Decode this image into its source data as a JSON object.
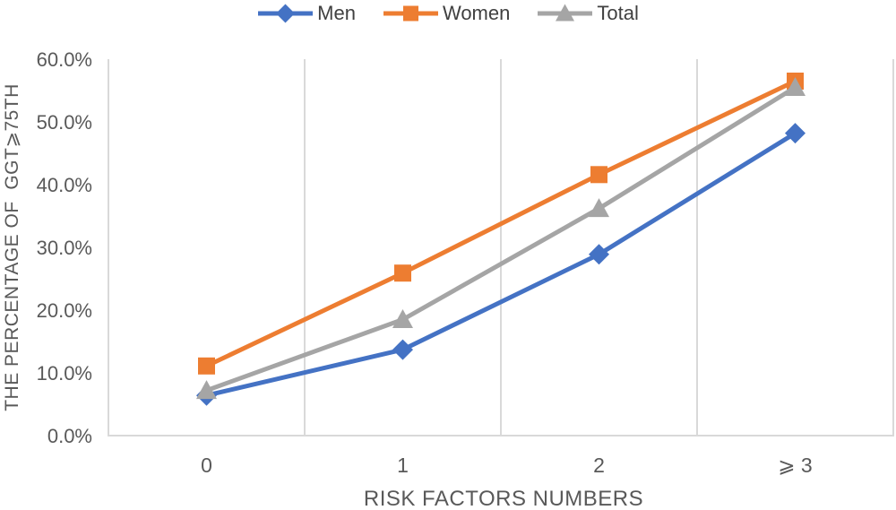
{
  "legend": {
    "items": [
      {
        "label": "Men",
        "color": "#4472C4",
        "marker": "diamond"
      },
      {
        "label": "Women",
        "color": "#ED7D31",
        "marker": "square"
      },
      {
        "label": "Total",
        "color": "#A5A5A5",
        "marker": "triangle"
      }
    ]
  },
  "chart_data": {
    "type": "line",
    "categories": [
      "0",
      "1",
      "2",
      "⩾ 3"
    ],
    "series": [
      {
        "name": "Men",
        "color": "#4472C4",
        "marker": "diamond",
        "values": [
          6.4,
          13.7,
          28.9,
          48.2
        ]
      },
      {
        "name": "Women",
        "color": "#ED7D31",
        "marker": "square",
        "values": [
          11.1,
          25.9,
          41.6,
          56.5
        ]
      },
      {
        "name": "Total",
        "color": "#A5A5A5",
        "marker": "triangle",
        "values": [
          7.2,
          18.5,
          36.2,
          55.5
        ]
      }
    ],
    "title": "",
    "xlabel": "RISK FACTORS NUMBERS",
    "ylabel": "THE PERCENTAGE OF  GGT⩾75TH",
    "ylim": [
      0,
      60
    ],
    "ytick_step": 10,
    "yticks": [
      "0.0%",
      "10.0%",
      "20.0%",
      "30.0%",
      "40.0%",
      "50.0%",
      "60.0%"
    ],
    "grid": "vertical-only",
    "legend_position": "top-center",
    "marker_on_lines": true
  },
  "colors": {
    "axis_text": "#595959",
    "legend_text": "#404040",
    "gridline": "#D9D9D9",
    "axis_line": "#D9D9D9"
  }
}
